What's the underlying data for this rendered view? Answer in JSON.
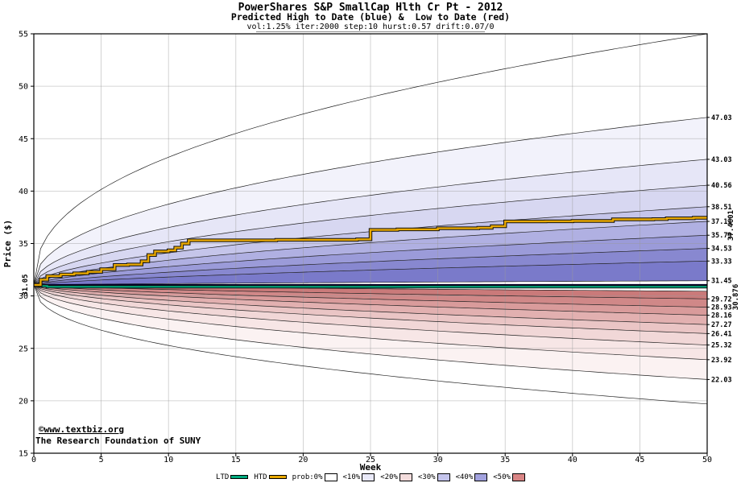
{
  "watermark": {
    "site": "©www.textbiz.org",
    "org": "The Research Foundation of SUNY"
  },
  "chart_data": {
    "type": "area",
    "title": "PowerShares S&P SmallCap Hlth Cr Pt - 2012",
    "subtitle": "Predicted High to Date (blue) &  Low to Date (red)",
    "params": "vol:1.25% iter:2000 step:10 hurst:0.57 drift:0.07/0",
    "xlabel": "Week",
    "ylabel": "Price ($)",
    "xlim": [
      0,
      50
    ],
    "ylim": [
      15,
      55
    ],
    "xticks": [
      0,
      5,
      10,
      15,
      20,
      25,
      30,
      35,
      40,
      45,
      50
    ],
    "yticks": [
      15,
      20,
      25,
      30,
      35,
      40,
      45,
      50,
      55
    ],
    "grid": true,
    "start_price": 31.05,
    "start_price_label": "31.05",
    "high_fan": {
      "direction": "up",
      "boundaries_week50_outer_to_inner": [
        55.0,
        47.03,
        43.03,
        40.56,
        38.51,
        37.11,
        35.79,
        34.53,
        33.33,
        31.45
      ],
      "band_colors_outer_to_inner": [
        "#ffffff",
        "#f2f2fb",
        "#e6e6f7",
        "#d7d7f1",
        "#c5c5ea",
        "#b0b0e2",
        "#9b9bd9",
        "#8888d0",
        "#7a7aca"
      ]
    },
    "low_fan": {
      "direction": "down",
      "boundaries_week50_outer_to_inner": [
        19.7,
        22.03,
        23.92,
        25.32,
        26.41,
        27.27,
        28.16,
        28.93,
        29.72,
        30.45
      ],
      "band_colors_outer_to_inner": [
        "#ffffff",
        "#fbf2f2",
        "#f7e6e6",
        "#f1d7d7",
        "#eac5c5",
        "#e2b0b0",
        "#d99b9b",
        "#d08888",
        "#ca7a7a"
      ]
    },
    "right_axis_labels": [
      "47.03",
      "43.03",
      "40.56",
      "38.51",
      "37.11",
      "35.79",
      "34.53",
      "33.33",
      "31.45",
      "29.72",
      "28.93",
      "28.16",
      "27.27",
      "26.41",
      "25.32",
      "23.92",
      "22.03"
    ],
    "series": [
      {
        "name": "LTD",
        "color": "#00aa7e",
        "final_label": "30.876",
        "final_value": 30.876,
        "points": [
          [
            0,
            31.05
          ],
          [
            0.4,
            30.95
          ],
          [
            1,
            30.88
          ],
          [
            2,
            30.876
          ],
          [
            50,
            30.876
          ]
        ]
      },
      {
        "name": "HTD",
        "color": "#e7a700",
        "final_label": "37.4601",
        "final_value": 37.4601,
        "points": [
          [
            0,
            31.05
          ],
          [
            0.5,
            31.55
          ],
          [
            1,
            31.9
          ],
          [
            2,
            32.05
          ],
          [
            3,
            32.15
          ],
          [
            4,
            32.3
          ],
          [
            5,
            32.55
          ],
          [
            6,
            32.95
          ],
          [
            7,
            33.0
          ],
          [
            8,
            33.3
          ],
          [
            8.5,
            33.9
          ],
          [
            9,
            34.25
          ],
          [
            10,
            34.35
          ],
          [
            10.5,
            34.6
          ],
          [
            11,
            35.0
          ],
          [
            11.5,
            35.3
          ],
          [
            13,
            35.3
          ],
          [
            18,
            35.35
          ],
          [
            24,
            35.4
          ],
          [
            25,
            36.3
          ],
          [
            27,
            36.35
          ],
          [
            30,
            36.45
          ],
          [
            33,
            36.5
          ],
          [
            34,
            36.65
          ],
          [
            35,
            37.1
          ],
          [
            38,
            37.12
          ],
          [
            40,
            37.15
          ],
          [
            43,
            37.3
          ],
          [
            46,
            37.33
          ],
          [
            47,
            37.4
          ],
          [
            49,
            37.46
          ],
          [
            50,
            37.4601
          ]
        ]
      }
    ],
    "legend": [
      {
        "label": "LTD",
        "type": "line",
        "color": "#00aa7e"
      },
      {
        "label": "HTD",
        "type": "line",
        "color": "#e7a700"
      },
      {
        "label": "prob:0%",
        "type": "box",
        "color": "#ffffff"
      },
      {
        "label": "<10%",
        "type": "box",
        "color": "#e9e9f8"
      },
      {
        "label": "<20%",
        "type": "box",
        "color": "#f3dcdc"
      },
      {
        "label": "<30%",
        "type": "box",
        "color": "#c4c4ec"
      },
      {
        "label": "<40%",
        "type": "box",
        "color": "#a2a2de"
      },
      {
        "label": "<50%",
        "type": "box",
        "color": "#d98585"
      }
    ]
  }
}
